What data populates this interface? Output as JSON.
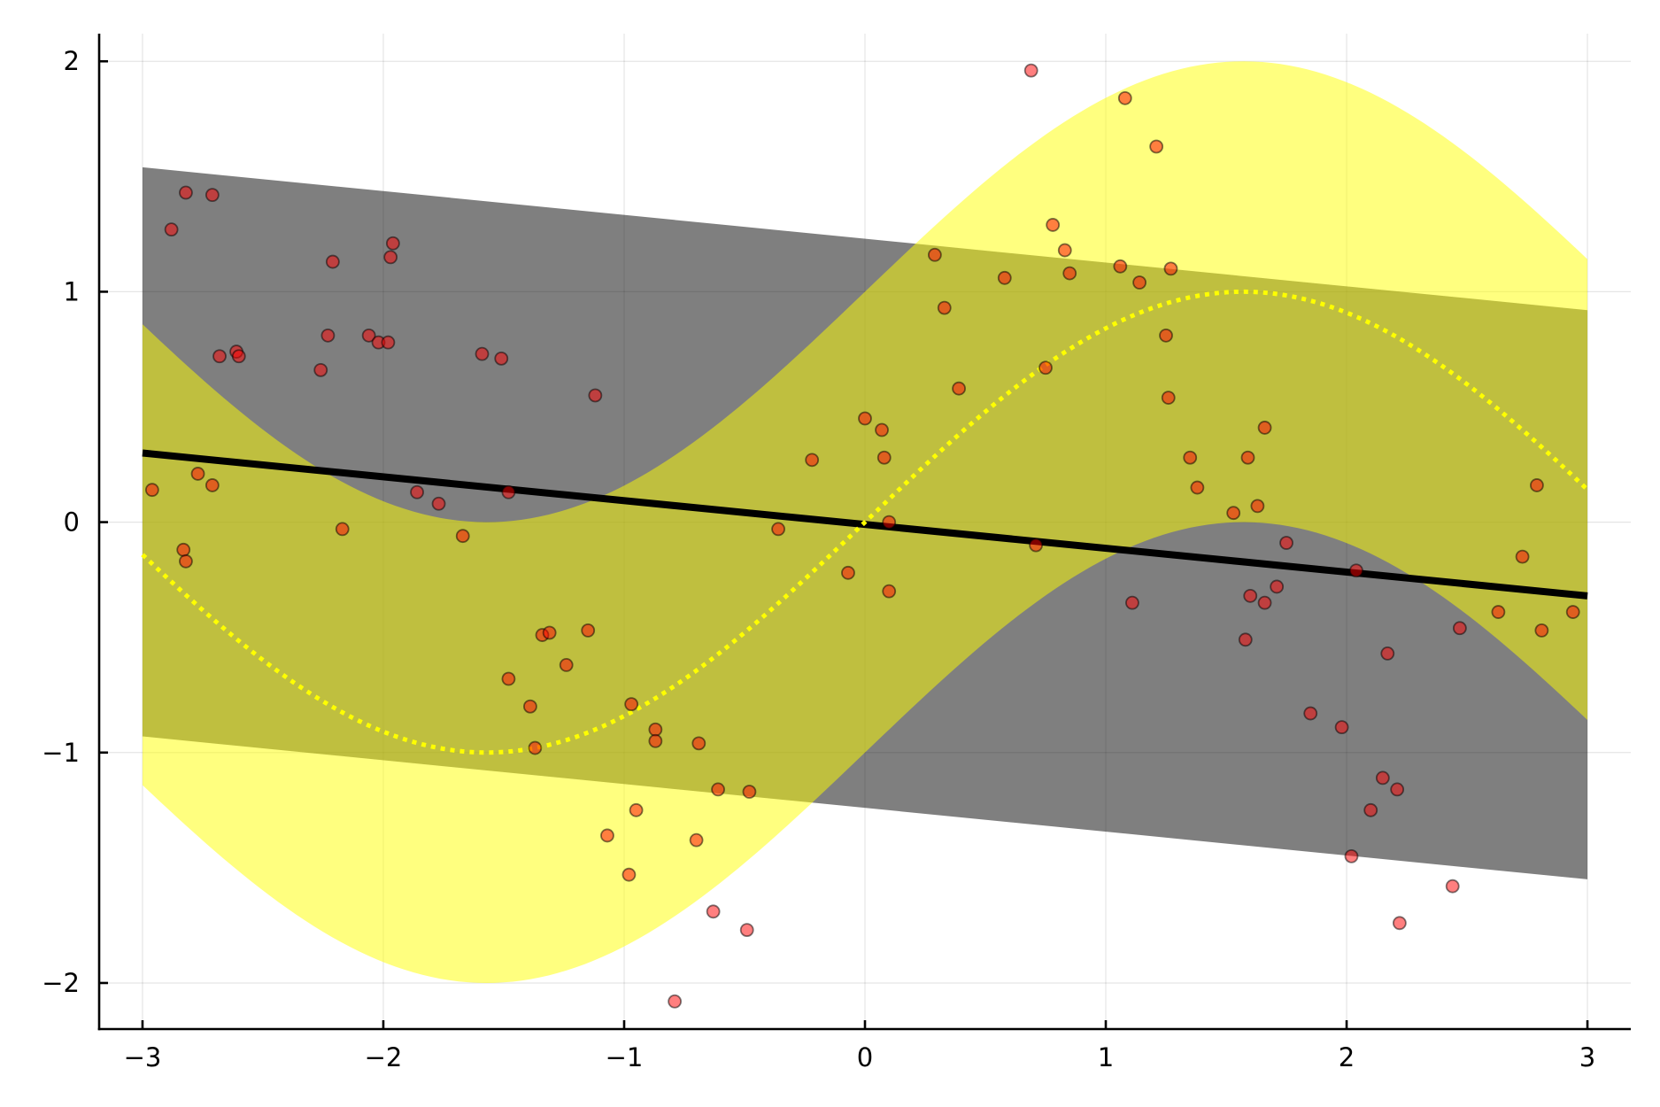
{
  "chart_data": {
    "type": "scatter",
    "title": "",
    "xlabel": "",
    "ylabel": "",
    "xlim": [
      -3.18,
      3.18
    ],
    "ylim": [
      -2.2,
      2.12
    ],
    "grid": true,
    "legend": "none",
    "x_ticks": [
      {
        "value": -3,
        "label": "−3"
      },
      {
        "value": -2,
        "label": "−2"
      },
      {
        "value": -1,
        "label": "−1"
      },
      {
        "value": 0,
        "label": "0"
      },
      {
        "value": 1,
        "label": "1"
      },
      {
        "value": 2,
        "label": "2"
      },
      {
        "value": 3,
        "label": "3"
      }
    ],
    "y_ticks": [
      {
        "value": -2,
        "label": "−2"
      },
      {
        "value": -1,
        "label": "−1"
      },
      {
        "value": 0,
        "label": "0"
      },
      {
        "value": 1,
        "label": "1"
      },
      {
        "value": 2,
        "label": "2"
      }
    ],
    "series": [
      {
        "kind": "band",
        "color": "#000000",
        "opacity": 0.5,
        "upper": [
          {
            "x": -3,
            "y": 1.54
          },
          {
            "x": 3,
            "y": 0.92
          }
        ],
        "lower": [
          {
            "x": -3,
            "y": -0.93
          },
          {
            "x": 3,
            "y": -1.55
          }
        ]
      },
      {
        "kind": "band",
        "color": "#ffff00",
        "opacity": 0.5,
        "upper": "sin(x)+1",
        "lower": "sin(x)-1",
        "x_range": [
          -3,
          3
        ]
      },
      {
        "kind": "line",
        "color": "#000000",
        "line_width": 8,
        "y": "-0.105*x",
        "points": [
          {
            "x": -3,
            "y": 0.3
          },
          {
            "x": 3,
            "y": -0.32
          }
        ]
      },
      {
        "kind": "line",
        "style": "dotted",
        "color": "#ffff00",
        "line_width": 5,
        "y": "sin(x)",
        "x_range": [
          -3,
          3
        ]
      },
      {
        "kind": "scatter",
        "color": "#ff0000",
        "opacity": 0.5,
        "points": [
          {
            "x": -2.96,
            "y": 0.14
          },
          {
            "x": -2.88,
            "y": 1.27
          },
          {
            "x": -2.82,
            "y": 1.43
          },
          {
            "x": -2.83,
            "y": -0.12
          },
          {
            "x": -2.82,
            "y": -0.17
          },
          {
            "x": -2.77,
            "y": 0.21
          },
          {
            "x": -2.71,
            "y": 1.42
          },
          {
            "x": -2.71,
            "y": 0.16
          },
          {
            "x": -2.68,
            "y": 0.72
          },
          {
            "x": -2.61,
            "y": 0.74
          },
          {
            "x": -2.6,
            "y": 0.72
          },
          {
            "x": -2.26,
            "y": 0.66
          },
          {
            "x": -2.23,
            "y": 0.81
          },
          {
            "x": -2.21,
            "y": 1.13
          },
          {
            "x": -2.17,
            "y": -0.03
          },
          {
            "x": -2.06,
            "y": 0.81
          },
          {
            "x": -2.02,
            "y": 0.78
          },
          {
            "x": -1.98,
            "y": 0.78
          },
          {
            "x": -1.97,
            "y": 1.15
          },
          {
            "x": -1.96,
            "y": 1.21
          },
          {
            "x": -1.86,
            "y": 0.13
          },
          {
            "x": -1.77,
            "y": 0.08
          },
          {
            "x": -1.67,
            "y": -0.06
          },
          {
            "x": -1.59,
            "y": 0.73
          },
          {
            "x": -1.51,
            "y": 0.71
          },
          {
            "x": -1.48,
            "y": 0.13
          },
          {
            "x": -1.48,
            "y": -0.68
          },
          {
            "x": -1.39,
            "y": -0.8
          },
          {
            "x": -1.37,
            "y": -0.98
          },
          {
            "x": -1.34,
            "y": -0.49
          },
          {
            "x": -1.31,
            "y": -0.48
          },
          {
            "x": -1.24,
            "y": -0.62
          },
          {
            "x": -1.15,
            "y": -0.47
          },
          {
            "x": -1.12,
            "y": 0.55
          },
          {
            "x": -1.07,
            "y": -1.36
          },
          {
            "x": -0.98,
            "y": -1.53
          },
          {
            "x": -0.97,
            "y": -0.79
          },
          {
            "x": -0.95,
            "y": -1.25
          },
          {
            "x": -0.87,
            "y": -0.9
          },
          {
            "x": -0.87,
            "y": -0.95
          },
          {
            "x": -0.79,
            "y": -2.08
          },
          {
            "x": -0.7,
            "y": -1.38
          },
          {
            "x": -0.69,
            "y": -0.96
          },
          {
            "x": -0.63,
            "y": -1.69
          },
          {
            "x": -0.61,
            "y": -1.16
          },
          {
            "x": -0.49,
            "y": -1.77
          },
          {
            "x": -0.48,
            "y": -1.17
          },
          {
            "x": -0.36,
            "y": -0.03
          },
          {
            "x": -0.22,
            "y": 0.27
          },
          {
            "x": -0.07,
            "y": -0.22
          },
          {
            "x": 0.0,
            "y": 0.45
          },
          {
            "x": 0.07,
            "y": 0.4
          },
          {
            "x": 0.08,
            "y": 0.28
          },
          {
            "x": 0.1,
            "y": 0.0
          },
          {
            "x": 0.1,
            "y": -0.3
          },
          {
            "x": 0.29,
            "y": 1.16
          },
          {
            "x": 0.33,
            "y": 0.93
          },
          {
            "x": 0.39,
            "y": 0.58
          },
          {
            "x": 0.58,
            "y": 1.06
          },
          {
            "x": 0.69,
            "y": 1.96
          },
          {
            "x": 0.71,
            "y": -0.1
          },
          {
            "x": 0.75,
            "y": 0.67
          },
          {
            "x": 0.78,
            "y": 1.29
          },
          {
            "x": 0.83,
            "y": 1.18
          },
          {
            "x": 0.85,
            "y": 1.08
          },
          {
            "x": 1.06,
            "y": 1.11
          },
          {
            "x": 1.08,
            "y": 1.84
          },
          {
            "x": 1.11,
            "y": -0.35
          },
          {
            "x": 1.14,
            "y": 1.04
          },
          {
            "x": 1.21,
            "y": 1.63
          },
          {
            "x": 1.25,
            "y": 0.81
          },
          {
            "x": 1.26,
            "y": 0.54
          },
          {
            "x": 1.27,
            "y": 1.1
          },
          {
            "x": 1.35,
            "y": 0.28
          },
          {
            "x": 1.38,
            "y": 0.15
          },
          {
            "x": 1.53,
            "y": 0.04
          },
          {
            "x": 1.58,
            "y": -0.51
          },
          {
            "x": 1.59,
            "y": 0.28
          },
          {
            "x": 1.6,
            "y": -0.32
          },
          {
            "x": 1.63,
            "y": 0.07
          },
          {
            "x": 1.66,
            "y": -0.35
          },
          {
            "x": 1.66,
            "y": 0.41
          },
          {
            "x": 1.71,
            "y": -0.28
          },
          {
            "x": 1.75,
            "y": -0.09
          },
          {
            "x": 1.85,
            "y": -0.83
          },
          {
            "x": 1.98,
            "y": -0.89
          },
          {
            "x": 2.02,
            "y": -1.45
          },
          {
            "x": 2.04,
            "y": -0.21
          },
          {
            "x": 2.1,
            "y": -1.25
          },
          {
            "x": 2.15,
            "y": -1.11
          },
          {
            "x": 2.17,
            "y": -0.57
          },
          {
            "x": 2.21,
            "y": -1.16
          },
          {
            "x": 2.22,
            "y": -1.74
          },
          {
            "x": 2.44,
            "y": -1.58
          },
          {
            "x": 2.47,
            "y": -0.46
          },
          {
            "x": 2.63,
            "y": -0.39
          },
          {
            "x": 2.73,
            "y": -0.15
          },
          {
            "x": 2.79,
            "y": 0.16
          },
          {
            "x": 2.81,
            "y": -0.47
          },
          {
            "x": 2.94,
            "y": -0.39
          }
        ]
      }
    ],
    "colors": {
      "band_gray": "#000000",
      "band_yellow": "#ffff00",
      "points": "#ff0000",
      "point_stroke": "#000000",
      "trend_line": "#000000",
      "curve": "#ffff00"
    }
  }
}
